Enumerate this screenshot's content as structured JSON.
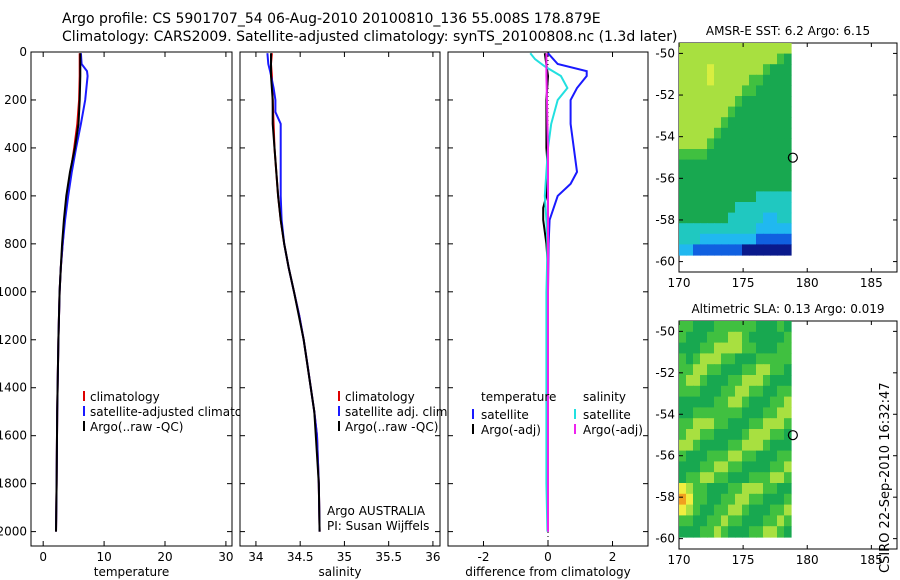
{
  "header": {
    "title_line1": "Argo profile: CS 5901707_54 06-Aug-2010 20100810_136 55.008S 178.879E",
    "title_line2": "Climatology: CARS2009. Satellite-adjusted climatology: synTS_20100808.nc (1.3d later)"
  },
  "footer": {
    "stamp": "CSIRO 22-Sep-2010 16:32:47"
  },
  "colors": {
    "climatology": "#dd0000",
    "satellite": "#1a1aff",
    "argo": "#000000",
    "satellite_salinity": "#22e0e0",
    "argo_salinity": "#ee22ee"
  },
  "chart_data": [
    {
      "type": "line",
      "id": "temperature",
      "xlabel": "temperature",
      "ylabel": "",
      "xlim": [
        -2,
        31
      ],
      "ylim": [
        2060,
        0
      ],
      "xticks": [
        0,
        10,
        20,
        30
      ],
      "yticks": [
        0,
        200,
        400,
        600,
        800,
        1000,
        1200,
        1400,
        1600,
        1800,
        2000
      ],
      "legend": [
        "climatology",
        "satellite-adjusted climatology",
        "Argo(..raw -QC)"
      ],
      "series": [
        {
          "name": "climatology",
          "color": "#dd0000",
          "depth": [
            5,
            50,
            100,
            200,
            300,
            400,
            500,
            600,
            700,
            800,
            900,
            1000,
            1200,
            1500,
            1800,
            2000
          ],
          "values": [
            6.0,
            6.0,
            6.0,
            5.9,
            5.6,
            5.1,
            4.5,
            3.9,
            3.5,
            3.2,
            2.9,
            2.7,
            2.5,
            2.3,
            2.2,
            2.1
          ]
        },
        {
          "name": "satellite-adjusted climatology",
          "color": "#1a1aff",
          "depth": [
            5,
            50,
            80,
            100,
            150,
            200,
            300,
            400,
            500,
            600,
            700,
            800,
            900,
            1000,
            1200,
            1500,
            1800,
            2000
          ],
          "values": [
            6.2,
            6.3,
            7.2,
            7.3,
            7.1,
            6.9,
            6.2,
            5.4,
            4.7,
            4.1,
            3.6,
            3.2,
            2.9,
            2.7,
            2.5,
            2.3,
            2.2,
            2.1
          ]
        },
        {
          "name": "Argo(..raw -QC)",
          "color": "#000000",
          "depth": [
            5,
            100,
            200,
            300,
            400,
            500,
            600,
            700,
            800,
            900,
            1000,
            1200,
            1500,
            1800,
            2000
          ],
          "values": [
            6.1,
            6.1,
            6.0,
            5.8,
            5.2,
            4.4,
            3.8,
            3.4,
            3.1,
            2.9,
            2.7,
            2.5,
            2.3,
            2.2,
            2.1
          ]
        }
      ]
    },
    {
      "type": "line",
      "id": "salinity",
      "xlabel": "salinity",
      "ylabel": "",
      "xlim": [
        33.82,
        36.08
      ],
      "ylim": [
        2060,
        0
      ],
      "xticks": [
        34,
        34.5,
        35,
        35.5,
        36
      ],
      "legend": [
        "climatology",
        "satellite adj. clim.",
        "Argo(..raw -QC)"
      ],
      "annotation": [
        "Argo AUSTRALIA",
        "PI: Susan Wijffels"
      ],
      "series": [
        {
          "name": "climatology",
          "color": "#dd0000",
          "depth": [
            5,
            50,
            100,
            200,
            300,
            400,
            500,
            600,
            700,
            800,
            900,
            1000,
            1100,
            1200,
            1300,
            1400,
            1500,
            1600,
            1800,
            2000
          ],
          "values": [
            34.18,
            34.17,
            34.18,
            34.19,
            34.2,
            34.21,
            34.23,
            34.25,
            34.28,
            34.32,
            34.37,
            34.43,
            34.49,
            34.54,
            34.58,
            34.62,
            34.66,
            34.69,
            34.71,
            34.72
          ]
        },
        {
          "name": "satellite adj. clim.",
          "color": "#1a1aff",
          "depth": [
            5,
            50,
            80,
            150,
            200,
            250,
            300,
            350,
            400,
            500,
            600,
            700,
            800,
            900,
            1000,
            1100,
            1200,
            1300,
            1400,
            1500,
            1600,
            1800,
            2000
          ],
          "values": [
            34.13,
            34.14,
            34.16,
            34.2,
            34.22,
            34.22,
            34.28,
            34.28,
            34.28,
            34.28,
            34.28,
            34.29,
            34.32,
            34.37,
            34.43,
            34.49,
            34.54,
            34.58,
            34.62,
            34.66,
            34.69,
            34.71,
            34.72
          ]
        },
        {
          "name": "Argo(..raw -QC)",
          "color": "#000000",
          "depth": [
            5,
            100,
            200,
            300,
            400,
            500,
            600,
            700,
            800,
            900,
            1000,
            1200,
            1500,
            1800,
            2000
          ],
          "values": [
            34.17,
            34.17,
            34.19,
            34.19,
            34.21,
            34.23,
            34.25,
            34.28,
            34.32,
            34.37,
            34.43,
            34.54,
            34.66,
            34.71,
            34.72
          ]
        }
      ]
    },
    {
      "type": "line",
      "id": "difference",
      "xlabel": "difference from climatology",
      "ylabel": "",
      "xlim": [
        -3.1,
        3.1
      ],
      "ylim": [
        2060,
        0
      ],
      "xticks": [
        -2,
        0,
        2
      ],
      "legend_titles": [
        "temperature",
        "salinity"
      ],
      "legend": [
        "satellite",
        "Argo(-adj)",
        "satellite",
        "Argo(-adj)"
      ],
      "series": [
        {
          "name": "satellite",
          "group": "temperature",
          "color": "#1a1aff",
          "depth": [
            5,
            50,
            80,
            100,
            150,
            200,
            300,
            400,
            500,
            550,
            600,
            700,
            800,
            900,
            1000,
            1200,
            1500,
            1800,
            2000
          ],
          "values": [
            0.0,
            0.3,
            1.2,
            1.2,
            0.9,
            0.7,
            0.7,
            0.8,
            0.9,
            0.7,
            0.3,
            0.05,
            0.02,
            0.01,
            0.0,
            0.0,
            0.0,
            0.0,
            0.0
          ]
        },
        {
          "name": "Argo(-adj)",
          "group": "temperature",
          "color": "#000000",
          "depth": [
            5,
            100,
            200,
            300,
            400,
            500,
            600,
            650,
            700,
            750,
            800,
            900,
            1000,
            1200,
            1500,
            1800,
            2000
          ],
          "values": [
            -0.1,
            0.0,
            -0.05,
            -0.05,
            -0.05,
            0.0,
            -0.05,
            -0.15,
            -0.15,
            -0.1,
            -0.05,
            0.0,
            0.0,
            0.0,
            0.0,
            0.0,
            0.0
          ]
        },
        {
          "name": "satellite",
          "group": "salinity",
          "color": "#22e0e0",
          "depth": [
            5,
            30,
            60,
            100,
            150,
            200,
            300,
            400,
            500,
            600,
            700,
            800,
            900,
            1000,
            1200,
            1500,
            1800,
            2000
          ],
          "values": [
            -0.55,
            -0.4,
            -0.1,
            0.4,
            0.6,
            0.3,
            0.1,
            0.0,
            -0.05,
            -0.1,
            -0.05,
            -0.02,
            -0.03,
            -0.05,
            -0.05,
            -0.05,
            -0.05,
            -0.02
          ]
        },
        {
          "name": "Argo(-adj)",
          "group": "salinity",
          "color": "#ee22ee",
          "depth": [
            5,
            50,
            100,
            200,
            300,
            400,
            500,
            600,
            700,
            800,
            900,
            1000,
            1200,
            1500,
            1800,
            2000
          ],
          "values": [
            -0.05,
            -0.05,
            -0.05,
            -0.03,
            -0.02,
            0.0,
            0.0,
            0.0,
            0.0,
            0.0,
            0.0,
            0.0,
            0.0,
            0.0,
            0.0,
            0.0
          ]
        }
      ]
    },
    {
      "type": "heatmap",
      "id": "amsre-sst",
      "title": "AMSR-E SST: 6.2 Argo: 6.15",
      "xlim": [
        170,
        187
      ],
      "ylim": [
        -60.5,
        -49.5
      ],
      "xticks": [
        170,
        175,
        180,
        185
      ],
      "yticks": [
        -50,
        -52,
        -54,
        -56,
        -58,
        -60
      ],
      "marker": {
        "lon": 178.879,
        "lat": -55.008
      },
      "palette": [
        "#0a1a8c",
        "#1060e0",
        "#20b8f0",
        "#20c8c0",
        "#18a850",
        "#40c040",
        "#a8e040",
        "#d8ee40",
        "#f0ee40",
        "#f0a020",
        "#e04010"
      ],
      "grid": [
        "6666666666666666",
        "6666666666666654",
        "6666766666665444",
        "6666766666554444",
        "6666666665544444",
        "6666666654444444",
        "6666666544444444",
        "6666665444444444",
        "6666654444444444",
        "6666544444444444",
        "5555444444444444",
        "4444444444444444",
        "4444444444444444",
        "4444444444444444",
        "4444444444433333",
        "4444444433333333",
        "4444444333332233",
        "3333333333322222",
        "3332222222211111",
        "2211111110000000"
      ]
    },
    {
      "type": "heatmap",
      "id": "altimetric-sla",
      "title": "Altimetric SLA: 0.13 Argo: 0.019",
      "xlim": [
        170,
        187
      ],
      "ylim": [
        -60.5,
        -49.5
      ],
      "xticks": [
        170,
        175,
        180,
        185
      ],
      "yticks": [
        -50,
        -52,
        -54,
        -56,
        -58,
        -60
      ],
      "marker": {
        "lon": 178.879,
        "lat": -55.008
      },
      "palette": [
        "#0a1a8c",
        "#1060e0",
        "#20b8f0",
        "#20c8c0",
        "#18a850",
        "#40c040",
        "#a8e040",
        "#d8ee40",
        "#f0ee40",
        "#f0a020",
        "#e04010"
      ],
      "grid": [
        "5544455555544454",
        "5444555665444445",
        "4445566665544455",
        "5456665544455555",
        "5566554445566554",
        "5665444556665444",
        "5554445566554455",
        "4444455665444556",
        "4455555554445566",
        "5566655444556665",
        "5665544445666554",
        "6654444556665444",
        "5444555665544455",
        "4445566554444556",
        "4556655444555665",
        "8655444556665544",
        "9855445566554445",
        "8654455665444556",
        "5544556554445565",
        "4445565444556654"
      ]
    }
  ]
}
